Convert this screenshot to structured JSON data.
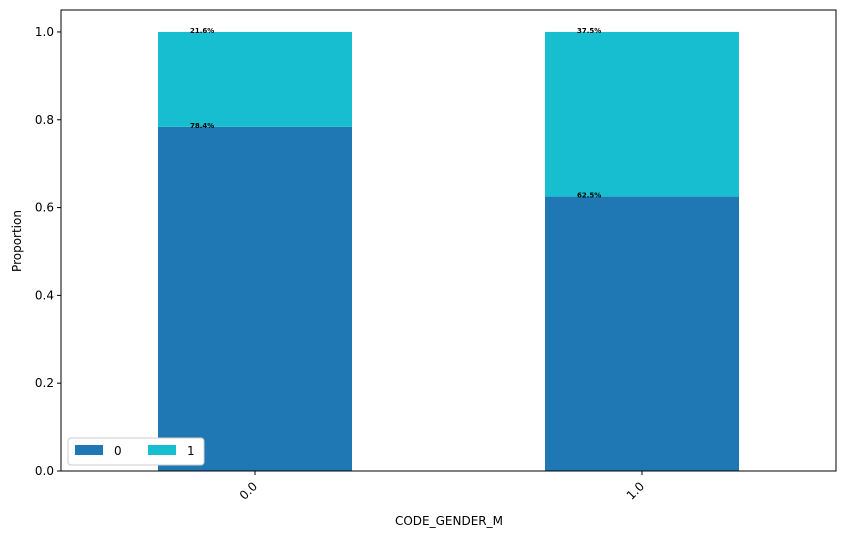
{
  "chart_data": {
    "type": "bar",
    "stacked": true,
    "categories": [
      "0.0",
      "1.0"
    ],
    "series": [
      {
        "name": "0",
        "values": [
          0.784,
          0.625
        ],
        "labels": [
          "78.4%",
          "62.5%"
        ],
        "color": "#1f77b4"
      },
      {
        "name": "1",
        "values": [
          0.216,
          0.375
        ],
        "labels": [
          "21.6%",
          "37.5%"
        ],
        "color": "#17becf"
      }
    ],
    "title": "",
    "xlabel": "CODE_GENDER_M",
    "ylabel": "Proportion",
    "ylim": [
      0,
      1.05
    ],
    "yticks": [
      "0.0",
      "0.2",
      "0.4",
      "0.6",
      "0.8",
      "1.0"
    ],
    "grid": false,
    "legend": {
      "placement": "lower-left",
      "columns": 2
    }
  }
}
